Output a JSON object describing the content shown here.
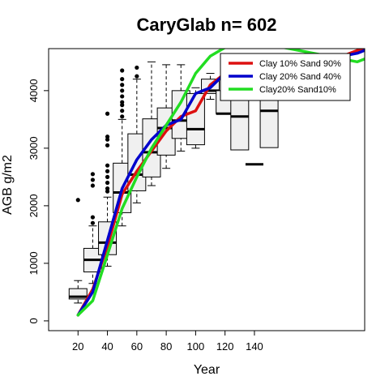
{
  "chart_data": {
    "type": "boxplot-with-lines",
    "title": "CaryGlab n= 602",
    "xlabel": "Year",
    "ylabel": "AGB g/m2",
    "xlim": [
      0,
      215
    ],
    "ylim": [
      -170,
      4730
    ],
    "x_ticks": [
      20,
      40,
      60,
      80,
      100,
      120,
      140
    ],
    "y_ticks": [
      0,
      1000,
      2000,
      3000,
      4000
    ],
    "legend_position": "top-right",
    "boxes": [
      {
        "x": 20,
        "min": 310,
        "q1": 380,
        "median": 420,
        "q3": 560,
        "max": 700,
        "outliers": [
          2100
        ]
      },
      {
        "x": 30,
        "min": 650,
        "q1": 850,
        "median": 1060,
        "q3": 1260,
        "max": 1650,
        "outliers": [
          1700,
          1800,
          2350,
          2450,
          2550
        ]
      },
      {
        "x": 40,
        "min": 950,
        "q1": 1150,
        "median": 1360,
        "q3": 1720,
        "max": 2150,
        "outliers": [
          2250,
          2300,
          2400,
          2500,
          2600,
          2700,
          3050,
          3150,
          3200,
          3600
        ]
      },
      {
        "x": 50,
        "min": 1650,
        "q1": 1880,
        "median": 2230,
        "q3": 2740,
        "max": 3500,
        "outliers": [
          3550,
          3650,
          3750,
          3800,
          3900,
          4000,
          4100,
          4200,
          4350
        ]
      },
      {
        "x": 60,
        "min": 2050,
        "q1": 2260,
        "median": 2540,
        "q3": 3250,
        "max": 4200,
        "outliers": [
          4250,
          4400
        ]
      },
      {
        "x": 70,
        "min": 2350,
        "q1": 2500,
        "median": 2930,
        "q3": 3510,
        "max": 4500,
        "outliers": []
      },
      {
        "x": 80,
        "min": 2650,
        "q1": 2880,
        "median": 3350,
        "q3": 3700,
        "max": 4450,
        "outliers": []
      },
      {
        "x": 90,
        "min": 2950,
        "q1": 3170,
        "median": 3480,
        "q3": 4000,
        "max": 4450,
        "outliers": []
      },
      {
        "x": 100,
        "min": 3000,
        "q1": 3060,
        "median": 3330,
        "q3": 3950,
        "max": 4050,
        "outliers": []
      },
      {
        "x": 110,
        "min": 3850,
        "q1": 3950,
        "median": 4000,
        "q3": 4200,
        "max": 4300,
        "outliers": []
      },
      {
        "x": 120,
        "min": 3600,
        "q1": 3600,
        "median": 3600,
        "q3": 4000,
        "max": 4000,
        "outliers": []
      },
      {
        "x": 130,
        "min": 2970,
        "q1": 2970,
        "median": 3550,
        "q3": 4050,
        "max": 4050,
        "outliers": []
      },
      {
        "x": 140,
        "min": 2720,
        "q1": 2720,
        "median": 2720,
        "q3": 2720,
        "max": 2720,
        "outliers": []
      },
      {
        "x": 150,
        "min": 3010,
        "q1": 3010,
        "median": 3650,
        "q3": 4200,
        "max": 4200,
        "outliers": []
      }
    ],
    "series": [
      {
        "name": "Clay 10% Sand 90%",
        "color": "#dd1010",
        "x": [
          20,
          30,
          40,
          50,
          60,
          70,
          80,
          90,
          100,
          110,
          120,
          130,
          140,
          150,
          160,
          170,
          180,
          190,
          200,
          210,
          215
        ],
        "y": [
          100,
          550,
          1300,
          2200,
          2600,
          2950,
          3300,
          3550,
          3650,
          4100,
          4300,
          4500,
          4550,
          4600,
          4600,
          4600,
          4550,
          4550,
          4600,
          4700,
          4700
        ]
      },
      {
        "name": "Clay 20% Sand 40%",
        "color": "#0000cc",
        "x": [
          20,
          30,
          40,
          50,
          60,
          70,
          80,
          90,
          100,
          110,
          120,
          130,
          140,
          150,
          160,
          170,
          180,
          190,
          200,
          210,
          215
        ],
        "y": [
          100,
          500,
          1400,
          2300,
          2800,
          3150,
          3400,
          3500,
          3950,
          4050,
          4300,
          4400,
          4500,
          4550,
          4550,
          4550,
          4500,
          4550,
          4600,
          4650,
          4700
        ]
      },
      {
        "name": "Clay20% Sand10%",
        "color": "#22dd22",
        "x": [
          20,
          30,
          40,
          50,
          60,
          70,
          80,
          90,
          100,
          110,
          120,
          130,
          140,
          150,
          160,
          170,
          180,
          190,
          200,
          210,
          215
        ],
        "y": [
          100,
          350,
          1150,
          1950,
          2500,
          3000,
          3400,
          3800,
          4300,
          4600,
          4750,
          4800,
          4800,
          4800,
          4750,
          4700,
          4650,
          4600,
          4550,
          4500,
          4550
        ]
      }
    ]
  }
}
